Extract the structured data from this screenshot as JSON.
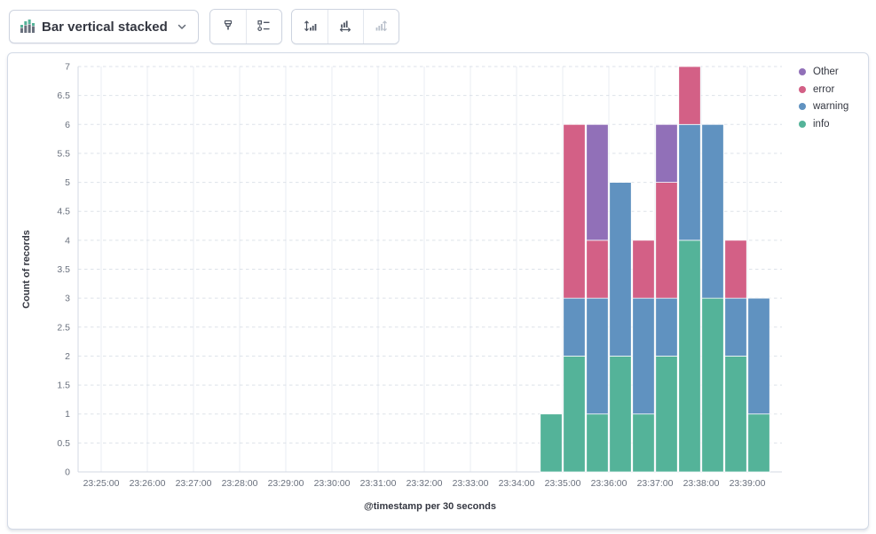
{
  "toolbar": {
    "chart_switch": {
      "label": "Bar vertical stacked",
      "icon": "bar-vertical-stacked-icon"
    },
    "style_buttons": [
      {
        "name": "visual-options",
        "icon": "brush-icon",
        "disabled": false
      },
      {
        "name": "legend-settings",
        "icon": "legend-list-icon",
        "disabled": false
      }
    ],
    "axis_buttons": [
      {
        "name": "left-axis",
        "icon": "axis-left-icon",
        "disabled": false
      },
      {
        "name": "bottom-axis",
        "icon": "axis-bottom-icon",
        "disabled": false
      },
      {
        "name": "right-axis",
        "icon": "axis-right-icon",
        "disabled": true
      }
    ]
  },
  "chart_data": {
    "type": "bar",
    "stacked": true,
    "orientation": "vertical",
    "title": "",
    "xlabel": "@timestamp per 30 seconds",
    "ylabel": "Count of records",
    "ylim": [
      0,
      7
    ],
    "y_tick_step": 0.5,
    "grid": true,
    "x_domain": [
      "23:24:30",
      "23:39:45"
    ],
    "x_tick_labels": [
      "23:25:00",
      "23:26:00",
      "23:27:00",
      "23:28:00",
      "23:29:00",
      "23:30:00",
      "23:31:00",
      "23:32:00",
      "23:33:00",
      "23:34:00",
      "23:35:00",
      "23:36:00",
      "23:37:00",
      "23:38:00",
      "23:39:00"
    ],
    "bucket_seconds": 30,
    "categories": [
      "23:34:30",
      "23:35:00",
      "23:35:30",
      "23:36:00",
      "23:36:30",
      "23:37:00",
      "23:37:30",
      "23:38:00",
      "23:38:30",
      "23:39:00"
    ],
    "series": [
      {
        "name": "info",
        "color": "#54B399",
        "values": [
          1,
          2,
          1,
          2,
          1,
          2,
          4,
          3,
          2,
          1
        ]
      },
      {
        "name": "warning",
        "color": "#6092C0",
        "values": [
          0,
          1,
          2,
          3,
          2,
          1,
          2,
          3,
          1,
          2
        ]
      },
      {
        "name": "error",
        "color": "#D36086",
        "values": [
          0,
          3,
          1,
          0,
          1,
          2,
          1,
          0,
          1,
          0
        ]
      },
      {
        "name": "Other",
        "color": "#9170B8",
        "values": [
          0,
          0,
          2,
          0,
          0,
          1,
          0,
          0,
          0,
          0
        ]
      }
    ],
    "legend": {
      "position": "right",
      "items": [
        "Other",
        "error",
        "warning",
        "info"
      ]
    }
  },
  "colors": {
    "info_green": "#54B399",
    "warning_blue": "#6092C0",
    "error_pink": "#D36086",
    "other_purple": "#9170B8",
    "panel_border": "#d3dae6",
    "tick_text": "#69707d",
    "axis_title_text": "#343741"
  }
}
